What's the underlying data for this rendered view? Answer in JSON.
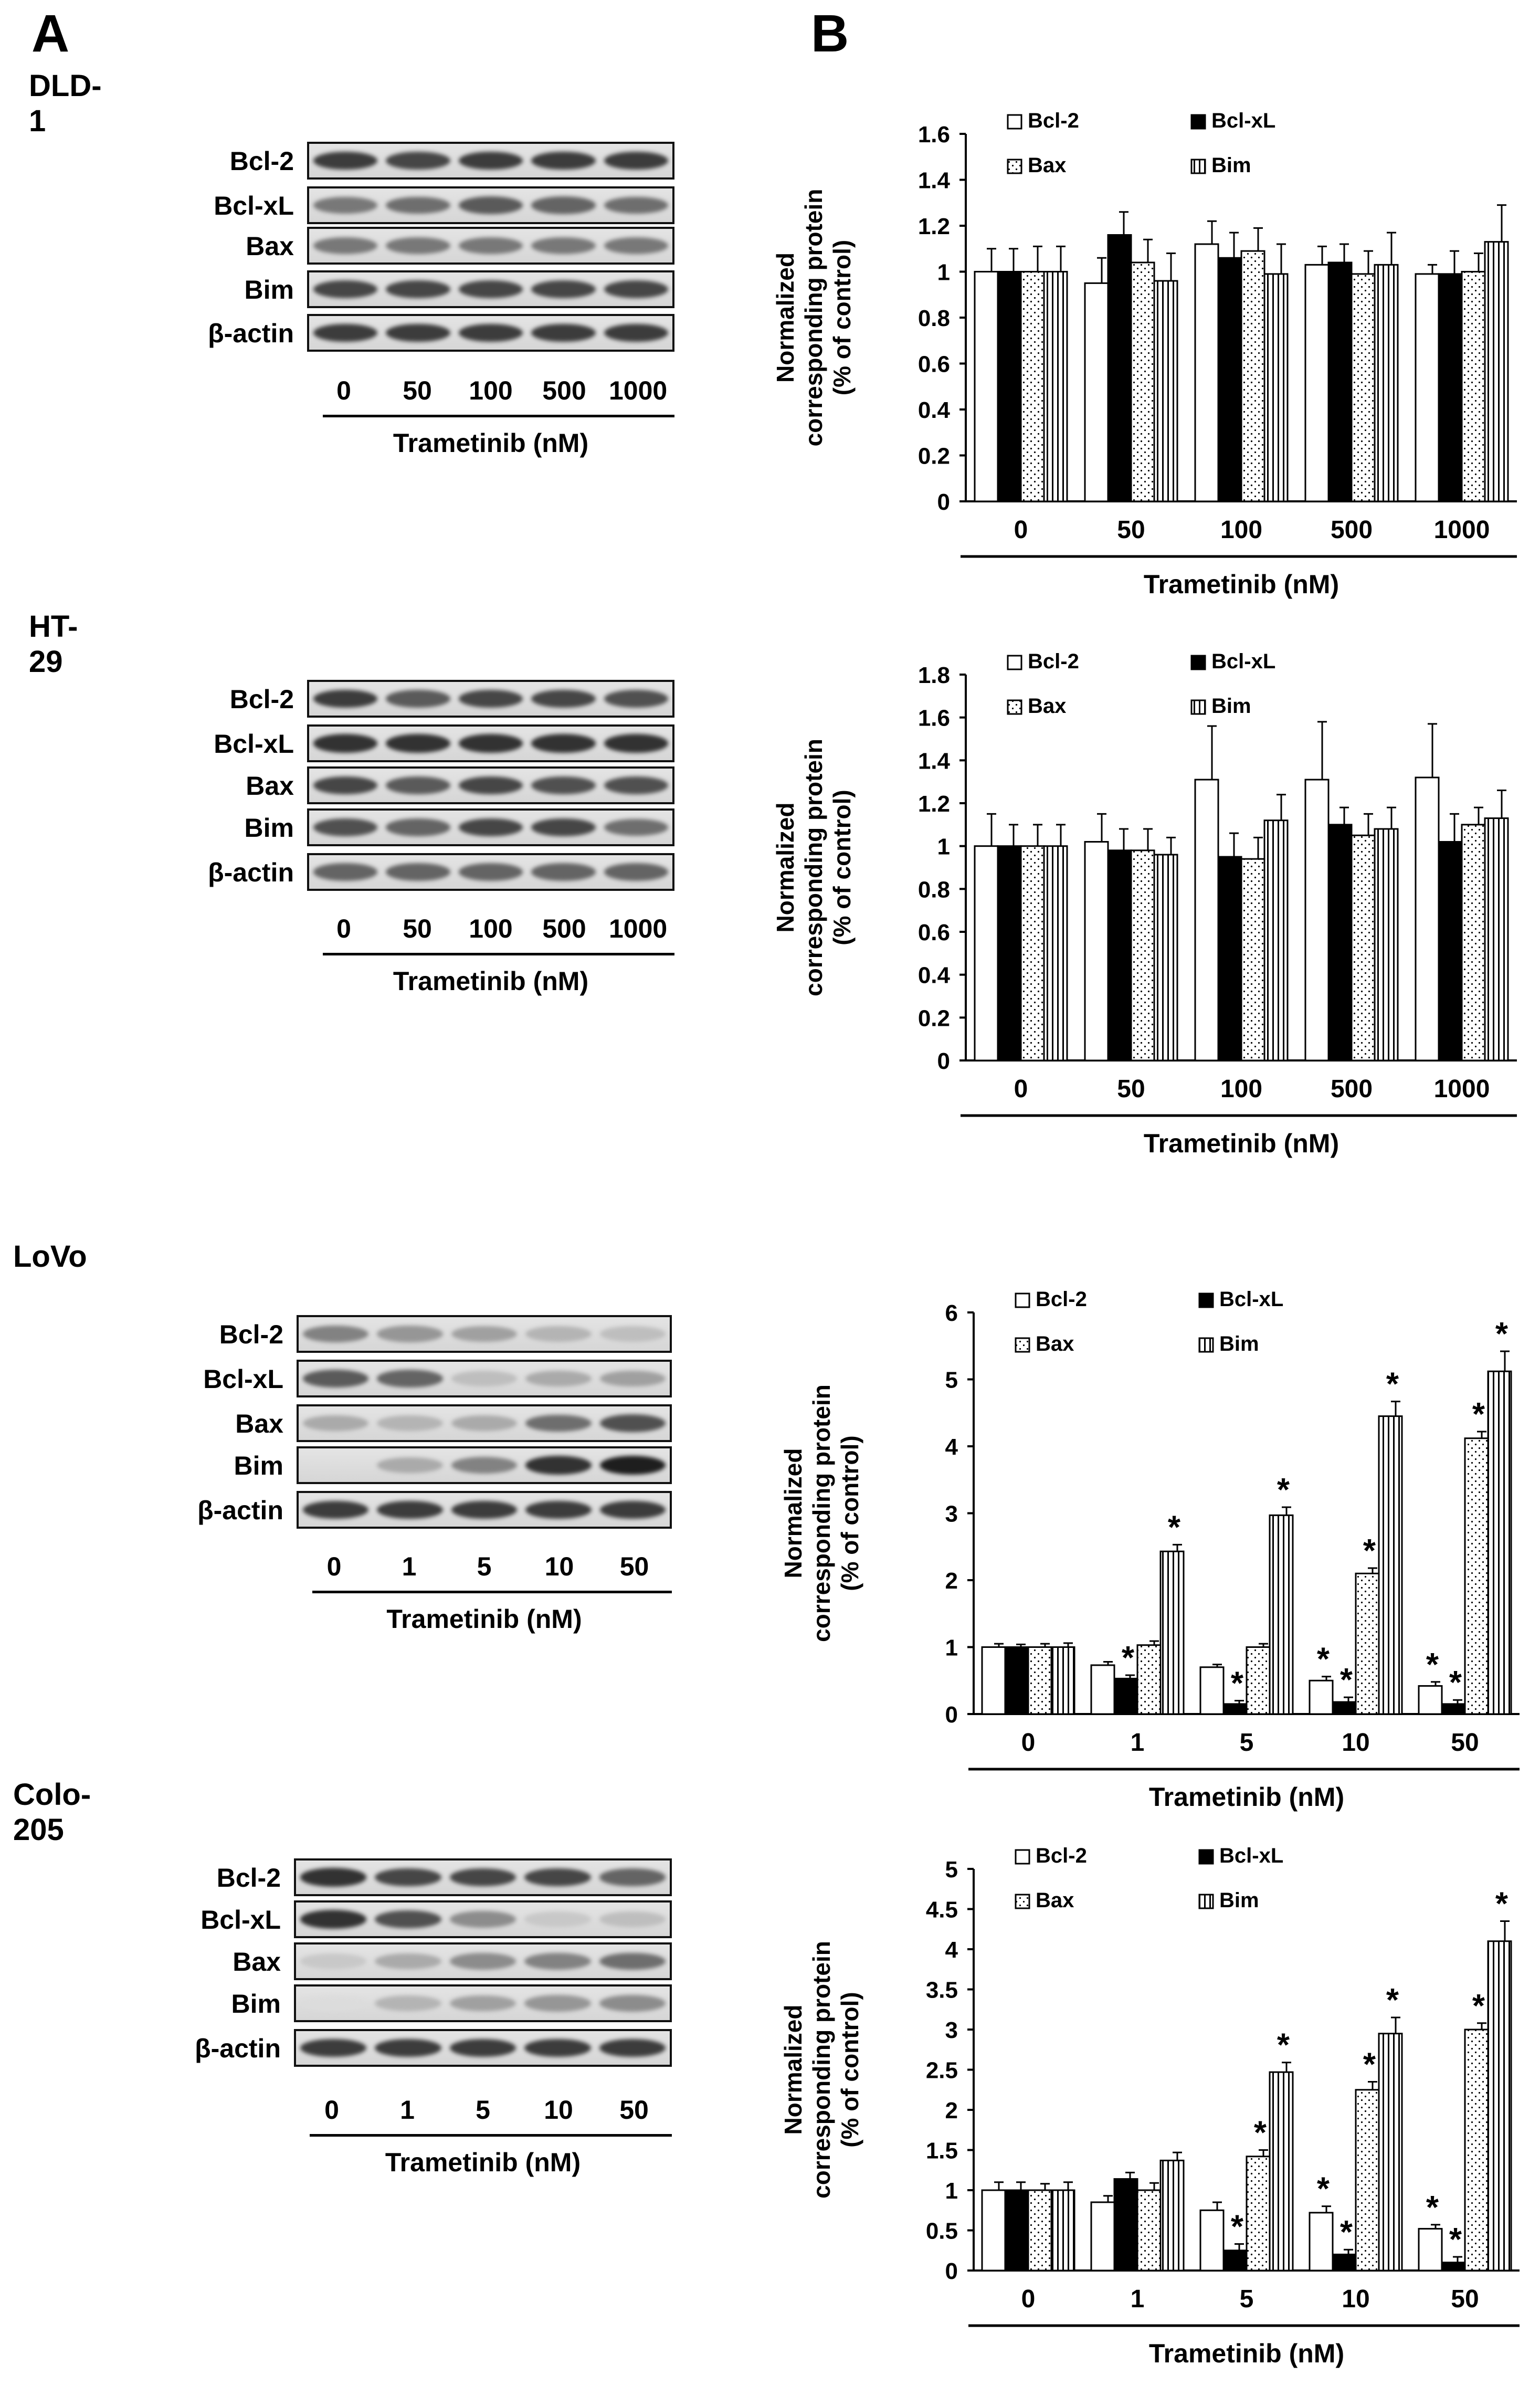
{
  "panel_labels": {
    "a": "A",
    "b": "B"
  },
  "blot_panels": [
    {
      "cell_line": "DLD-1",
      "rows": [
        "Bcl-2",
        "Bcl-xL",
        "Bax",
        "Bim",
        "β-actin"
      ],
      "doses": [
        "0",
        "50",
        "100",
        "500",
        "1000"
      ],
      "axis_title": "Trametinib (nM)"
    },
    {
      "cell_line": "HT-29",
      "rows": [
        "Bcl-2",
        "Bcl-xL",
        "Bax",
        "Bim",
        "β-actin"
      ],
      "doses": [
        "0",
        "50",
        "100",
        "500",
        "1000"
      ],
      "axis_title": "Trametinib (nM)"
    },
    {
      "cell_line": "LoVo",
      "rows": [
        "Bcl-2",
        "Bcl-xL",
        "Bax",
        "Bim",
        "β-actin"
      ],
      "doses": [
        "0",
        "1",
        "5",
        "10",
        "50"
      ],
      "axis_title": "Trametinib (nM)"
    },
    {
      "cell_line": "Colo-205",
      "rows": [
        "Bcl-2",
        "Bcl-xL",
        "Bax",
        "Bim",
        "β-actin"
      ],
      "doses": [
        "0",
        "1",
        "5",
        "10",
        "50"
      ],
      "axis_title": "Trametinib (nM)"
    }
  ],
  "chart_data": [
    {
      "type": "bar",
      "ylabel": "Normalized corresponding protein (% of control)",
      "ylabel_lines": [
        "Normalized",
        "corresponding protein",
        "(% of control)"
      ],
      "xlabel": "Trametinib (nM)",
      "categories": [
        "0",
        "50",
        "100",
        "500",
        "1000"
      ],
      "ylim": [
        0,
        1.6
      ],
      "yticks": [
        "0",
        "0.2",
        "0.4",
        "0.6",
        "0.8",
        "1",
        "1.2",
        "1.4",
        "1.6"
      ],
      "legend_position": "top",
      "series": [
        {
          "name": "Bcl-2",
          "pattern": "white",
          "values": [
            1.0,
            0.95,
            1.12,
            1.03,
            0.99
          ],
          "errors": [
            0.1,
            0.11,
            0.1,
            0.08,
            0.04
          ],
          "significant": [
            false,
            false,
            false,
            false,
            false
          ]
        },
        {
          "name": "Bcl-xL",
          "pattern": "black",
          "values": [
            1.0,
            1.16,
            1.06,
            1.04,
            0.99
          ],
          "errors": [
            0.1,
            0.1,
            0.11,
            0.08,
            0.1
          ],
          "significant": [
            false,
            false,
            false,
            false,
            false
          ]
        },
        {
          "name": "Bax",
          "pattern": "dots",
          "values": [
            1.0,
            1.04,
            1.09,
            0.99,
            1.0
          ],
          "errors": [
            0.11,
            0.1,
            0.1,
            0.1,
            0.08
          ],
          "significant": [
            false,
            false,
            false,
            false,
            false
          ]
        },
        {
          "name": "Bim",
          "pattern": "vlines",
          "values": [
            1.0,
            0.96,
            0.99,
            1.03,
            1.13
          ],
          "errors": [
            0.11,
            0.12,
            0.13,
            0.14,
            0.16
          ],
          "significant": [
            false,
            false,
            false,
            false,
            false
          ]
        }
      ]
    },
    {
      "type": "bar",
      "ylabel": "Normalized corresponding protein (% of control)",
      "ylabel_lines": [
        "Normalized",
        "corresponding protein",
        "(% of control)"
      ],
      "xlabel": "Trametinib (nM)",
      "categories": [
        "0",
        "50",
        "100",
        "500",
        "1000"
      ],
      "ylim": [
        0,
        1.8
      ],
      "yticks": [
        "0",
        "0.2",
        "0.4",
        "0.6",
        "0.8",
        "1",
        "1.2",
        "1.4",
        "1.6",
        "1.8"
      ],
      "legend_position": "top",
      "series": [
        {
          "name": "Bcl-2",
          "pattern": "white",
          "values": [
            1.0,
            1.02,
            1.31,
            1.31,
            1.32
          ],
          "errors": [
            0.15,
            0.13,
            0.25,
            0.27,
            0.25
          ],
          "significant": [
            false,
            false,
            false,
            false,
            false
          ]
        },
        {
          "name": "Bcl-xL",
          "pattern": "black",
          "values": [
            1.0,
            0.98,
            0.95,
            1.1,
            1.02
          ],
          "errors": [
            0.1,
            0.1,
            0.11,
            0.08,
            0.13
          ],
          "significant": [
            false,
            false,
            false,
            false,
            false
          ]
        },
        {
          "name": "Bax",
          "pattern": "dots",
          "values": [
            1.0,
            0.98,
            0.94,
            1.05,
            1.1
          ],
          "errors": [
            0.1,
            0.1,
            0.1,
            0.1,
            0.08
          ],
          "significant": [
            false,
            false,
            false,
            false,
            false
          ]
        },
        {
          "name": "Bim",
          "pattern": "vlines",
          "values": [
            1.0,
            0.96,
            1.12,
            1.08,
            1.13
          ],
          "errors": [
            0.1,
            0.08,
            0.12,
            0.1,
            0.13
          ],
          "significant": [
            false,
            false,
            false,
            false,
            false
          ]
        }
      ]
    },
    {
      "type": "bar",
      "ylabel": "Normalized corresponding protein (% of control)",
      "ylabel_lines": [
        "Normalized",
        "corresponding protein",
        "(% of control)"
      ],
      "xlabel": "Trametinib (nM)",
      "categories": [
        "0",
        "1",
        "5",
        "10",
        "50"
      ],
      "ylim": [
        0,
        6
      ],
      "yticks": [
        "0",
        "1",
        "2",
        "3",
        "4",
        "5",
        "6"
      ],
      "legend_position": "top",
      "significance_marker": "*",
      "series": [
        {
          "name": "Bcl-2",
          "pattern": "white",
          "values": [
            1.0,
            0.73,
            0.7,
            0.5,
            0.42
          ],
          "errors": [
            0.05,
            0.05,
            0.04,
            0.06,
            0.06
          ],
          "significant": [
            false,
            false,
            false,
            true,
            true
          ]
        },
        {
          "name": "Bcl-xL",
          "pattern": "black",
          "values": [
            1.0,
            0.53,
            0.15,
            0.18,
            0.15
          ],
          "errors": [
            0.04,
            0.05,
            0.05,
            0.07,
            0.06
          ],
          "significant": [
            false,
            true,
            true,
            true,
            true
          ]
        },
        {
          "name": "Bax",
          "pattern": "dots",
          "values": [
            1.0,
            1.03,
            1.0,
            2.1,
            4.12
          ],
          "errors": [
            0.05,
            0.06,
            0.05,
            0.08,
            0.1
          ],
          "significant": [
            false,
            false,
            false,
            true,
            true
          ]
        },
        {
          "name": "Bim",
          "pattern": "vlines",
          "values": [
            1.0,
            2.43,
            2.97,
            4.45,
            5.12
          ],
          "errors": [
            0.06,
            0.1,
            0.12,
            0.22,
            0.3
          ],
          "significant": [
            false,
            true,
            true,
            true,
            true
          ]
        }
      ]
    },
    {
      "type": "bar",
      "ylabel": "Normalized corresponding protein (% of control)",
      "ylabel_lines": [
        "Normalized",
        "corresponding protein",
        "(% of control)"
      ],
      "xlabel": "Trametinib (nM)",
      "categories": [
        "0",
        "1",
        "5",
        "10",
        "50"
      ],
      "ylim": [
        0,
        5
      ],
      "yticks": [
        "0",
        "0.5",
        "1",
        "1.5",
        "2",
        "2.5",
        "3",
        "3.5",
        "4",
        "4.5",
        "5"
      ],
      "legend_position": "top",
      "significance_marker": "*",
      "series": [
        {
          "name": "Bcl-2",
          "pattern": "white",
          "values": [
            1.0,
            0.85,
            0.75,
            0.72,
            0.52
          ],
          "errors": [
            0.1,
            0.08,
            0.1,
            0.08,
            0.05
          ],
          "significant": [
            false,
            false,
            false,
            true,
            true
          ]
        },
        {
          "name": "Bcl-xL",
          "pattern": "black",
          "values": [
            1.0,
            1.14,
            0.25,
            0.2,
            0.1
          ],
          "errors": [
            0.1,
            0.08,
            0.08,
            0.06,
            0.07
          ],
          "significant": [
            false,
            false,
            true,
            true,
            true
          ]
        },
        {
          "name": "Bax",
          "pattern": "dots",
          "values": [
            1.0,
            1.0,
            1.42,
            2.25,
            3.0
          ],
          "errors": [
            0.08,
            0.09,
            0.08,
            0.1,
            0.08
          ],
          "significant": [
            false,
            false,
            true,
            true,
            true
          ]
        },
        {
          "name": "Bim",
          "pattern": "vlines",
          "values": [
            1.0,
            1.37,
            2.47,
            2.95,
            4.1
          ],
          "errors": [
            0.1,
            0.1,
            0.12,
            0.2,
            0.25
          ],
          "significant": [
            false,
            false,
            true,
            true,
            true
          ]
        }
      ]
    }
  ]
}
